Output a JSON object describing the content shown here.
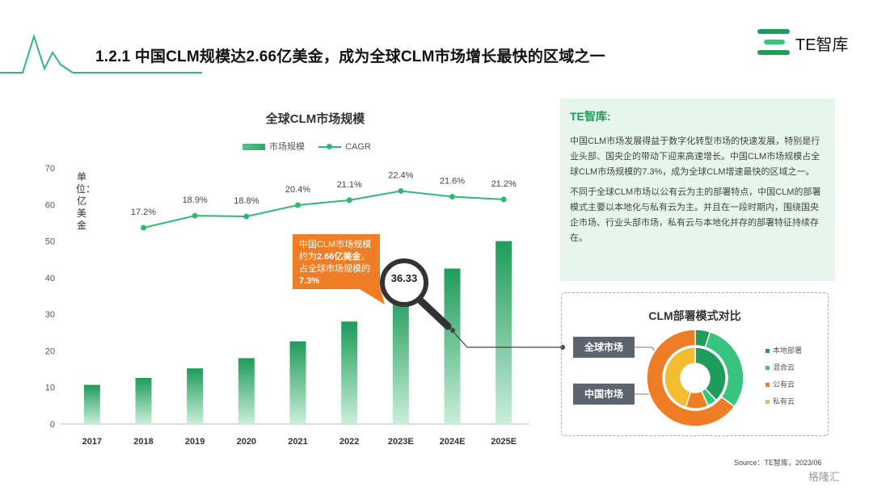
{
  "header": {
    "title": "1.2.1 中国CLM规模达2.66亿美金，成为全球CLM市场增长最快的区域之一",
    "brand": "TE智库"
  },
  "chart_data": {
    "type": "bar",
    "title": "全球CLM市场规模",
    "unit_label": "单位：亿美金",
    "categories": [
      "2017",
      "2018",
      "2019",
      "2020",
      "2021",
      "2022",
      "2023E",
      "2024E",
      "2025E"
    ],
    "series": [
      {
        "name": "市场规模",
        "type": "bar",
        "values": [
          10.7,
          12.6,
          15.2,
          18.0,
          22.6,
          28.0,
          36.33,
          42.5,
          50.0
        ]
      },
      {
        "name": "CAGR",
        "type": "line",
        "axis": "secondary",
        "values": [
          null,
          17.2,
          18.9,
          18.8,
          20.4,
          21.1,
          22.4,
          21.6,
          21.2
        ],
        "labels": [
          null,
          "17.2%",
          "18.9%",
          "18.8%",
          "20.4%",
          "21.1%",
          "22.4%",
          "21.6%",
          "21.2%"
        ]
      }
    ],
    "y_ticks": [
      0,
      10,
      20,
      30,
      40,
      50,
      60,
      70
    ],
    "ylim": [
      0,
      70
    ],
    "highlight": {
      "category": "2023E",
      "label": "36.33"
    },
    "grid": false,
    "legend_position": "top",
    "colors": {
      "bar": "#2ea86a",
      "line": "#2fba72"
    }
  },
  "callout": {
    "pre": "中国CLM市场规模约为",
    "amount": "2.66亿美金",
    "mid": "，占全球市场规模的",
    "pct": "7.3%"
  },
  "info": {
    "title": "TE智库:",
    "para1": "中国CLM市场发展得益于数字化转型市场的快速发展，特别是行业头部、国央企的带动下迎来高速增长。中国CLM市场规模占全球CLM市场规模的7.3%，成为全球CLM增速最快的区域之一。",
    "para2": "不同于全球CLM市场以公有云为主的部署特点，中国CLM的部署模式主要以本地化与私有云为主。并且在一段时期内，围绕国央企市场、行业头部市场，私有云与本地化并存的部署特征持续存在。"
  },
  "deploy": {
    "title": "CLM部署模式对比",
    "markets": [
      "全球市场",
      "中国市场"
    ],
    "legend": [
      {
        "label": "本地部署",
        "color": "#1f9b5a"
      },
      {
        "label": "混合云",
        "color": "#37c47c"
      },
      {
        "label": "公有云",
        "color": "#ef7d26"
      },
      {
        "label": "私有云",
        "color": "#f4bd2f"
      }
    ],
    "global_ring": [
      0.05,
      0.3,
      0.65,
      0.0
    ],
    "china_ring": [
      0.38,
      0.05,
      0.12,
      0.45
    ]
  },
  "source": "Source：TE智库，2023/06",
  "watermark": "格隆汇"
}
